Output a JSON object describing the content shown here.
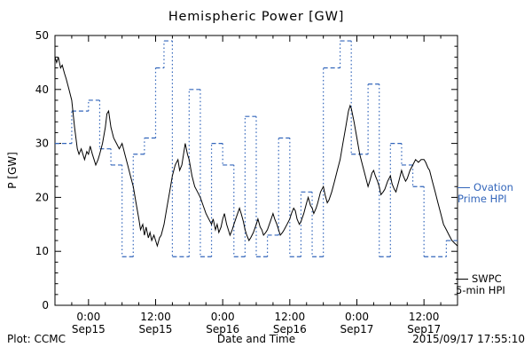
{
  "chart_data": {
    "type": "line",
    "title": "Hemispheric Power [GW]",
    "xlabel": "Date and Time",
    "ylabel": "P [GW]",
    "ylim": [
      0,
      50
    ],
    "xlim_hours": [
      0,
      72
    ],
    "x_unit": "hours from plot start (Sep 14 18:00 UT)",
    "grid": false,
    "legend_position": "right-outside",
    "y_ticks": [
      0,
      10,
      20,
      30,
      40,
      50
    ],
    "x_ticks": [
      {
        "hour": 6,
        "time": "0:00",
        "date": "Sep15"
      },
      {
        "hour": 18,
        "time": "12:00",
        "date": "Sep15"
      },
      {
        "hour": 30,
        "time": "0:00",
        "date": "Sep16"
      },
      {
        "hour": 42,
        "time": "12:00",
        "date": "Sep16"
      },
      {
        "hour": 54,
        "time": "0:00",
        "date": "Sep17"
      },
      {
        "hour": 66,
        "time": "12:00",
        "date": "Sep17"
      }
    ],
    "series": [
      {
        "name": "SWPC 5-min HPI",
        "type": "line",
        "color": "#000000",
        "points": [
          [
            0,
            46
          ],
          [
            0.3,
            45
          ],
          [
            0.6,
            46
          ],
          [
            1,
            44
          ],
          [
            1.3,
            44.5
          ],
          [
            1.7,
            43
          ],
          [
            2,
            42
          ],
          [
            2.5,
            40
          ],
          [
            3,
            38
          ],
          [
            3.5,
            33
          ],
          [
            4,
            29
          ],
          [
            4.3,
            28
          ],
          [
            4.7,
            29
          ],
          [
            5,
            28
          ],
          [
            5.3,
            27
          ],
          [
            5.7,
            28.5
          ],
          [
            6,
            28
          ],
          [
            6.3,
            29.5
          ],
          [
            6.7,
            28
          ],
          [
            7,
            27
          ],
          [
            7.3,
            26
          ],
          [
            7.7,
            27
          ],
          [
            8,
            28
          ],
          [
            8.5,
            30
          ],
          [
            9,
            33
          ],
          [
            9.3,
            35.5
          ],
          [
            9.6,
            36
          ],
          [
            10,
            33
          ],
          [
            10.5,
            31
          ],
          [
            11,
            30
          ],
          [
            11.5,
            29
          ],
          [
            12,
            30
          ],
          [
            12.5,
            28
          ],
          [
            13,
            26
          ],
          [
            13.5,
            24
          ],
          [
            14,
            22
          ],
          [
            14.5,
            19
          ],
          [
            15,
            16
          ],
          [
            15.3,
            14
          ],
          [
            15.7,
            15
          ],
          [
            16,
            13
          ],
          [
            16.3,
            14.5
          ],
          [
            16.7,
            12.5
          ],
          [
            17,
            13.5
          ],
          [
            17.3,
            12
          ],
          [
            17.7,
            13
          ],
          [
            18,
            12
          ],
          [
            18.3,
            11
          ],
          [
            18.7,
            12.5
          ],
          [
            19,
            13
          ],
          [
            19.5,
            15
          ],
          [
            20,
            18
          ],
          [
            20.5,
            21
          ],
          [
            21,
            24
          ],
          [
            21.5,
            26
          ],
          [
            22,
            27
          ],
          [
            22.3,
            25
          ],
          [
            22.7,
            26
          ],
          [
            23,
            28
          ],
          [
            23.3,
            30
          ],
          [
            23.7,
            28
          ],
          [
            24,
            27
          ],
          [
            24.5,
            24
          ],
          [
            25,
            22
          ],
          [
            25.5,
            21
          ],
          [
            26,
            20
          ],
          [
            26.5,
            18.5
          ],
          [
            27,
            17
          ],
          [
            27.5,
            16
          ],
          [
            28,
            15
          ],
          [
            28.3,
            16
          ],
          [
            28.7,
            14
          ],
          [
            29,
            15
          ],
          [
            29.3,
            13.5
          ],
          [
            29.7,
            14.5
          ],
          [
            30,
            16
          ],
          [
            30.3,
            17
          ],
          [
            30.7,
            15
          ],
          [
            31,
            14
          ],
          [
            31.3,
            13
          ],
          [
            31.7,
            14
          ],
          [
            32,
            15
          ],
          [
            32.5,
            16.5
          ],
          [
            33,
            18
          ],
          [
            33.3,
            17
          ],
          [
            33.7,
            15.5
          ],
          [
            34,
            14
          ],
          [
            34.3,
            13
          ],
          [
            34.7,
            12
          ],
          [
            35,
            12.5
          ],
          [
            35.5,
            13.5
          ],
          [
            36,
            15
          ],
          [
            36.3,
            16
          ],
          [
            36.7,
            14.5
          ],
          [
            37,
            14
          ],
          [
            37.3,
            13
          ],
          [
            37.7,
            13.5
          ],
          [
            38,
            14
          ],
          [
            38.5,
            15.5
          ],
          [
            39,
            17
          ],
          [
            39.3,
            16
          ],
          [
            39.7,
            15
          ],
          [
            40,
            14
          ],
          [
            40.3,
            13
          ],
          [
            40.7,
            13.5
          ],
          [
            41,
            14
          ],
          [
            41.5,
            15
          ],
          [
            42,
            16
          ],
          [
            42.3,
            17
          ],
          [
            42.7,
            18
          ],
          [
            43,
            17.5
          ],
          [
            43.3,
            16
          ],
          [
            43.7,
            15
          ],
          [
            44,
            15.5
          ],
          [
            44.5,
            17
          ],
          [
            45,
            19
          ],
          [
            45.3,
            20
          ],
          [
            45.7,
            18.5
          ],
          [
            46,
            18
          ],
          [
            46.3,
            17
          ],
          [
            46.7,
            18
          ],
          [
            47,
            19
          ],
          [
            47.5,
            21
          ],
          [
            48,
            22
          ],
          [
            48.3,
            20.5
          ],
          [
            48.7,
            19
          ],
          [
            49,
            19.5
          ],
          [
            49.5,
            21
          ],
          [
            50,
            23
          ],
          [
            50.5,
            25
          ],
          [
            51,
            27
          ],
          [
            51.5,
            30
          ],
          [
            52,
            33
          ],
          [
            52.5,
            36
          ],
          [
            52.8,
            37
          ],
          [
            53,
            36.5
          ],
          [
            53.5,
            34
          ],
          [
            54,
            31
          ],
          [
            54.5,
            28
          ],
          [
            55,
            26
          ],
          [
            55.5,
            24
          ],
          [
            56,
            22
          ],
          [
            56.3,
            23
          ],
          [
            56.7,
            24.5
          ],
          [
            57,
            25
          ],
          [
            57.3,
            24
          ],
          [
            57.7,
            23
          ],
          [
            58,
            22
          ],
          [
            58.3,
            20.5
          ],
          [
            58.7,
            21
          ],
          [
            59,
            21.5
          ],
          [
            59.5,
            23
          ],
          [
            60,
            24
          ],
          [
            60.3,
            22.5
          ],
          [
            60.7,
            21.5
          ],
          [
            61,
            21
          ],
          [
            61.5,
            23
          ],
          [
            62,
            25
          ],
          [
            62.3,
            24
          ],
          [
            62.7,
            23
          ],
          [
            63,
            23.5
          ],
          [
            63.5,
            25
          ],
          [
            64,
            26
          ],
          [
            64.5,
            27
          ],
          [
            65,
            26.5
          ],
          [
            65.5,
            27
          ],
          [
            66,
            27
          ],
          [
            66.3,
            26.5
          ],
          [
            66.7,
            25.5
          ],
          [
            67,
            25
          ],
          [
            67.5,
            23
          ],
          [
            68,
            21
          ],
          [
            68.5,
            19
          ],
          [
            69,
            17
          ],
          [
            69.5,
            15
          ],
          [
            70,
            14
          ],
          [
            70.5,
            13
          ],
          [
            71,
            12
          ],
          [
            71.5,
            11.5
          ],
          [
            72,
            11
          ]
        ]
      },
      {
        "name": "Ovation Prime HPI",
        "type": "step",
        "color": "#3366bb",
        "steps": [
          [
            0,
            30
          ],
          [
            3,
            36
          ],
          [
            6,
            38
          ],
          [
            8,
            29
          ],
          [
            10,
            26
          ],
          [
            12,
            9
          ],
          [
            14,
            28
          ],
          [
            16,
            31
          ],
          [
            18,
            44
          ],
          [
            19.5,
            49
          ],
          [
            21,
            9
          ],
          [
            24,
            40
          ],
          [
            26,
            9
          ],
          [
            28,
            30
          ],
          [
            30,
            26
          ],
          [
            32,
            9
          ],
          [
            34,
            35
          ],
          [
            36,
            9
          ],
          [
            38,
            13
          ],
          [
            40,
            31
          ],
          [
            42,
            9
          ],
          [
            44,
            21
          ],
          [
            46,
            9
          ],
          [
            48,
            44
          ],
          [
            51,
            49
          ],
          [
            53,
            28
          ],
          [
            56,
            41
          ],
          [
            58,
            9
          ],
          [
            60,
            30
          ],
          [
            62,
            26
          ],
          [
            64,
            22
          ],
          [
            66,
            9
          ],
          [
            70,
            12
          ]
        ]
      }
    ]
  },
  "legend": {
    "ovation": {
      "line1": "Ovation",
      "line2": "Prime HPI",
      "color": "#3366bb"
    },
    "swpc": {
      "line1": "SWPC",
      "line2": "5-min HPI",
      "color": "#000000"
    }
  },
  "footer": {
    "credit": "Plot: CCMC",
    "timestamp": "2015/09/17 17:55:10"
  }
}
